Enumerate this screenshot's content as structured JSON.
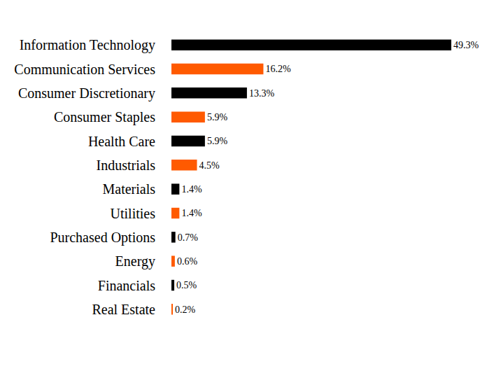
{
  "chart_data": {
    "type": "bar",
    "orientation": "horizontal",
    "categories": [
      "Information Technology",
      "Communication Services",
      "Consumer Discretionary",
      "Consumer Staples",
      "Health Care",
      "Industrials",
      "Materials",
      "Utilities",
      "Purchased Options",
      "Energy",
      "Financials",
      "Real Estate"
    ],
    "values": [
      49.3,
      16.2,
      13.3,
      5.9,
      5.9,
      4.5,
      1.4,
      1.4,
      0.7,
      0.6,
      0.5,
      0.2
    ],
    "value_labels": [
      "49.3%",
      "16.2%",
      "13.3%",
      "5.9%",
      "5.9%",
      "4.5%",
      "1.4%",
      "1.4%",
      "0.7%",
      "0.6%",
      "0.5%",
      "0.2%"
    ],
    "colors": [
      "#000000",
      "#ff5a00",
      "#000000",
      "#ff5a00",
      "#000000",
      "#ff5a00",
      "#000000",
      "#ff5a00",
      "#000000",
      "#ff5a00",
      "#000000",
      "#ff5a00"
    ],
    "data_labels": true,
    "tick_labels": "y",
    "grid": false
  }
}
